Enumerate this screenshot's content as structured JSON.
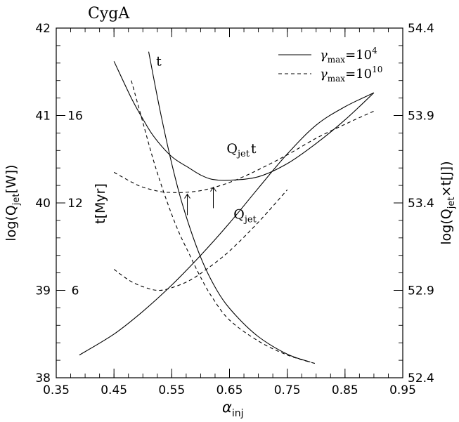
{
  "chart_data": {
    "type": "line",
    "title": "CygA",
    "xlabel_main": "α",
    "xlabel_sub": "inj",
    "ylabel_left": "log(Q_jet[W])",
    "ylabel_right": "log(Q_jet×t[J])",
    "ylabel_inner": "t[Myr]",
    "xlim": [
      0.35,
      0.95
    ],
    "ylim": [
      38,
      42
    ],
    "ylim_right": [
      52.4,
      54.4
    ],
    "x_ticks": [
      "0.35",
      "0.45",
      "0.55",
      "0.65",
      "0.75",
      "0.85",
      "0.95"
    ],
    "y_ticks_left": [
      "38",
      "39",
      "40",
      "41",
      "42"
    ],
    "y_ticks_right": [
      "52.4",
      "52.9",
      "53.4",
      "53.9",
      "54.4"
    ],
    "t_ticks": [
      {
        "label": "6",
        "y": 39
      },
      {
        "label": "12",
        "y": 40
      },
      {
        "label": "16",
        "y": 41
      }
    ],
    "legend": {
      "placement": "top-right",
      "entries": [
        {
          "style": "solid",
          "text": "γ",
          "sub": "max",
          "eq": "=10",
          "sup": "4"
        },
        {
          "style": "dashed",
          "text": "γ",
          "sub": "max",
          "eq": "=10",
          "sup": "10"
        }
      ]
    },
    "annotations": [
      {
        "id": "t",
        "text": "t",
        "x": 0.523,
        "y": 41.57
      },
      {
        "id": "qjett",
        "text": "Q",
        "sub": "jet",
        "suffix": "t",
        "x": 0.645,
        "y": 40.57
      },
      {
        "id": "qjet",
        "text": "Q",
        "sub": "jet",
        "x": 0.657,
        "y": 39.82
      }
    ],
    "arrows": [
      {
        "x": 0.577,
        "y_from": 39.86,
        "y_to": 40.1
      },
      {
        "x": 0.622,
        "y_from": 39.94,
        "y_to": 40.18
      }
    ],
    "series": [
      {
        "style": "solid",
        "role": "Qjet",
        "x": [
          0.39,
          0.45,
          0.5,
          0.55,
          0.6,
          0.65,
          0.7,
          0.75,
          0.8,
          0.85,
          0.9
        ],
        "y": [
          38.26,
          38.5,
          38.76,
          39.06,
          39.4,
          39.77,
          40.17,
          40.56,
          40.89,
          41.1,
          41.26
        ]
      },
      {
        "style": "solid",
        "role": "Qjet_t",
        "x": [
          0.45,
          0.48,
          0.5,
          0.52,
          0.55,
          0.58,
          0.6,
          0.62,
          0.65,
          0.7,
          0.75,
          0.8,
          0.85,
          0.9
        ],
        "y": [
          41.62,
          41.2,
          40.96,
          40.75,
          40.53,
          40.4,
          40.32,
          40.27,
          40.26,
          40.3,
          40.45,
          40.68,
          40.95,
          41.26
        ]
      },
      {
        "style": "solid",
        "role": "t",
        "x": [
          0.51,
          0.53,
          0.55,
          0.57,
          0.6,
          0.63,
          0.66,
          0.7,
          0.75,
          0.79
        ],
        "y": [
          41.73,
          41.05,
          40.45,
          39.95,
          39.38,
          38.98,
          38.72,
          38.47,
          38.27,
          38.18
        ]
      },
      {
        "style": "dashed",
        "role": "Qjet",
        "x": [
          0.45,
          0.48,
          0.51,
          0.53,
          0.55,
          0.58,
          0.61,
          0.65,
          0.7,
          0.75
        ],
        "y": [
          39.24,
          39.1,
          39.02,
          39.0,
          39.03,
          39.11,
          39.24,
          39.45,
          39.78,
          40.15
        ]
      },
      {
        "style": "dashed",
        "role": "Qjet_t",
        "x": [
          0.45,
          0.48,
          0.5,
          0.53,
          0.55,
          0.57,
          0.6,
          0.63,
          0.66,
          0.7,
          0.75,
          0.8,
          0.85,
          0.9
        ],
        "y": [
          40.35,
          40.24,
          40.18,
          40.13,
          40.12,
          40.12,
          40.14,
          40.19,
          40.26,
          40.38,
          40.55,
          40.74,
          40.9,
          41.05
        ]
      },
      {
        "style": "dashed",
        "role": "t",
        "x": [
          0.48,
          0.5,
          0.52,
          0.54,
          0.56,
          0.58,
          0.6,
          0.62,
          0.65,
          0.7,
          0.75,
          0.8
        ],
        "y": [
          41.4,
          40.92,
          40.45,
          40.05,
          39.7,
          39.42,
          39.15,
          38.92,
          38.66,
          38.42,
          38.26,
          38.16
        ]
      }
    ]
  }
}
